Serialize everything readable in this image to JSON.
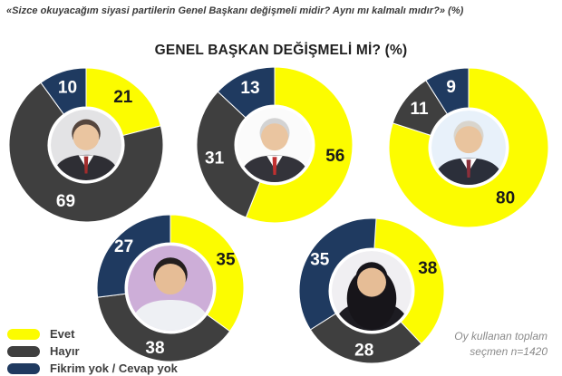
{
  "header": {
    "quote": "«Sizce okuyacağım siyasi partilerin Genel Başkanı değişmeli midir? Aynı mı kalmalı mıdır?» (%)",
    "title": "GENEL BAŞKAN DEĞİŞMELİ Mİ? (%)"
  },
  "legend": {
    "items": [
      {
        "label": "Evet",
        "color": "#FCFC00"
      },
      {
        "label": "Hayır",
        "color": "#3F3F3F"
      },
      {
        "label": "Fikrim yok / Cevap yok",
        "color": "#1F3A60"
      }
    ]
  },
  "footnote": "Oy kullanan toplam seçmen n=1420",
  "chart_data": {
    "type": "pie",
    "variant": "donut-small-multiples",
    "title": "GENEL BAŞKAN DEĞİŞMELİ Mİ? (%)",
    "question": "«Sizce okuyacağım siyasi partilerin Genel Başkanı değişmeli midir? Aynı mı kalmalı mıdır?» (%)",
    "unit": "%",
    "categories": [
      "Evet",
      "Hayır",
      "Fikrim yok / Cevap yok"
    ],
    "colors": [
      "#FCFC00",
      "#3F3F3F",
      "#1F3A60"
    ],
    "legend_position": "bottom-left",
    "center_icon": "leader-portrait-photo",
    "charts": [
      {
        "position": "top-left",
        "values": [
          21,
          69,
          10
        ]
      },
      {
        "position": "top-center",
        "values": [
          56,
          31,
          13
        ]
      },
      {
        "position": "top-right",
        "values": [
          80,
          11,
          9
        ]
      },
      {
        "position": "bottom-left",
        "values": [
          35,
          38,
          27
        ]
      },
      {
        "position": "bottom-right",
        "values": [
          38,
          28,
          35
        ]
      }
    ],
    "sample_note": "Oy kullanan toplam seçmen n=1420"
  }
}
